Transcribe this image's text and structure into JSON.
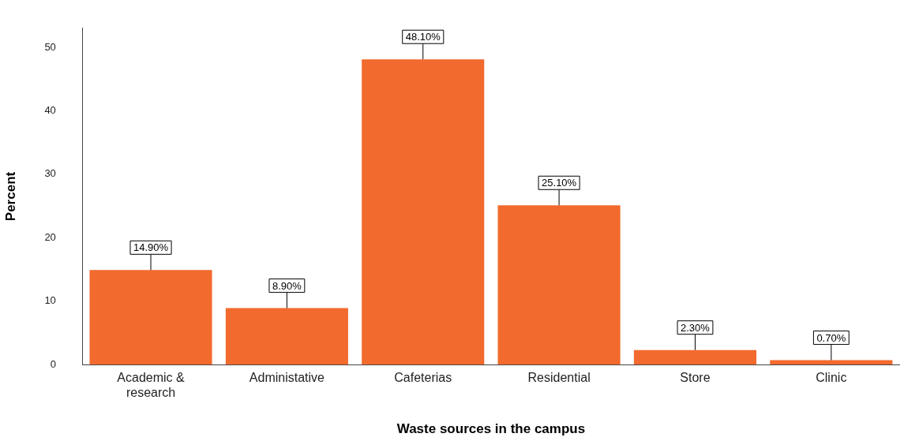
{
  "chart_data": {
    "type": "bar",
    "xlabel": "Waste sources in the campus",
    "ylabel": "Percent",
    "categories": [
      "Academic & research",
      "Administative",
      "Cafeterias",
      "Residential",
      "Store",
      "Clinic"
    ],
    "values": [
      14.9,
      8.9,
      48.1,
      25.1,
      2.3,
      0.7
    ],
    "value_labels": [
      "14.90%",
      "8.90%",
      "48.10%",
      "25.10%",
      "2.30%",
      "0.70%"
    ],
    "color": "#f26a2e",
    "ylim": [
      0,
      53
    ],
    "yticks": [
      0,
      10,
      20,
      30,
      40,
      50
    ],
    "grid": false,
    "legend": false
  }
}
